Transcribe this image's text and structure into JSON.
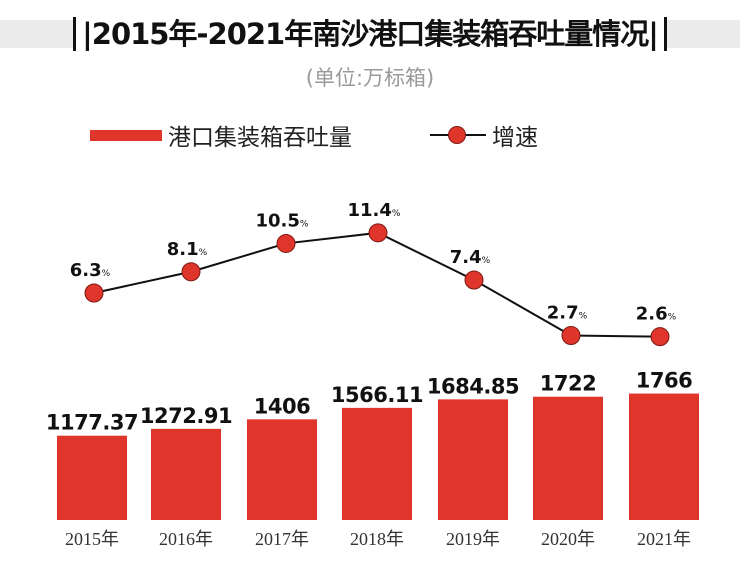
{
  "chart_data": {
    "type": "bar+line",
    "title": "|2015年-2021年南沙港口集装箱吞吐量情况|",
    "subtitle": "(单位:万标箱)",
    "categories": [
      "2015年",
      "2016年",
      "2017年",
      "2018年",
      "2019年",
      "2020年",
      "2021年"
    ],
    "series": [
      {
        "name": "港口集装箱吞吐量",
        "type": "bar",
        "values": [
          1177.37,
          1272.91,
          1406,
          1566.11,
          1684.85,
          1722,
          1766
        ],
        "labels": [
          "1177.37",
          "1272.91",
          "1406",
          "1566.11",
          "1684.85",
          "1722",
          "1766"
        ],
        "color": "#e0352b"
      },
      {
        "name": "增速",
        "type": "line",
        "values": [
          6.3,
          8.1,
          10.5,
          11.4,
          7.4,
          2.7,
          2.6
        ],
        "labels": [
          "6.3",
          "8.1",
          "10.5",
          "11.4",
          "7.4",
          "2.7",
          "2.6"
        ],
        "unit": "%",
        "color": "#e0352b",
        "line_color": "#111111"
      }
    ],
    "xlabel": "",
    "ylabel": "",
    "legend": "top-left",
    "grid": false
  }
}
